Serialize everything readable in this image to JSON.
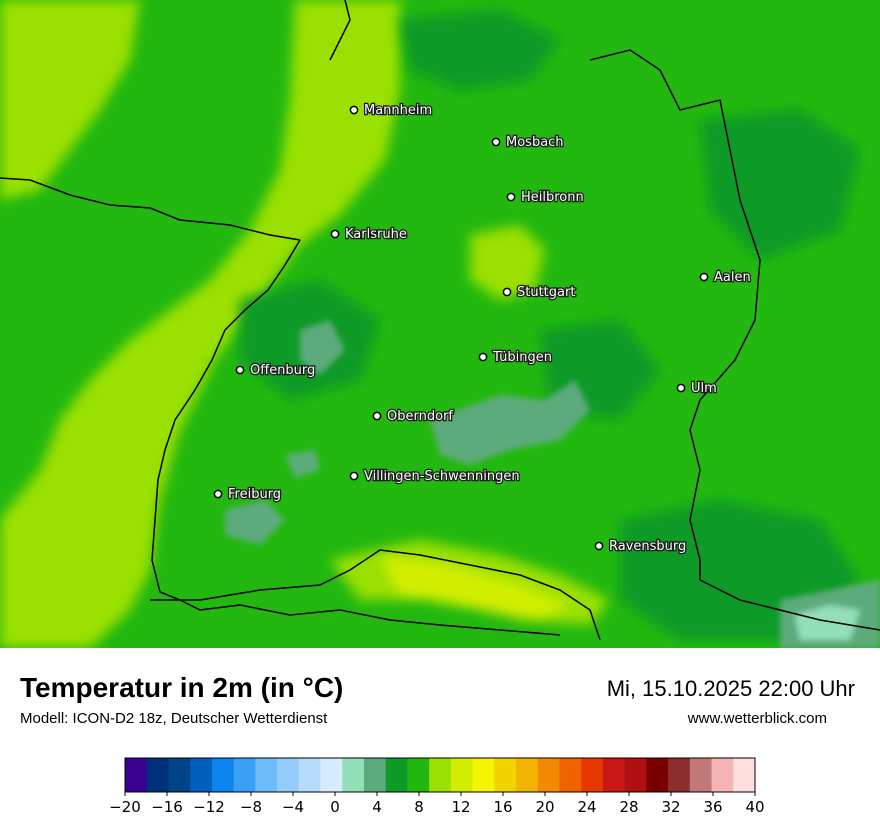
{
  "map": {
    "background_color": "#22b80f",
    "cities": [
      {
        "name": "Mannheim"
      },
      {
        "name": "Mosbach"
      },
      {
        "name": "Heilbronn"
      },
      {
        "name": "Karlsruhe"
      },
      {
        "name": "Aalen"
      },
      {
        "name": "Stuttgart"
      },
      {
        "name": "Tübingen"
      },
      {
        "name": "Offenburg"
      },
      {
        "name": "Ulm"
      },
      {
        "name": "Oberndorf"
      },
      {
        "name": "Villingen-Schwenningen"
      },
      {
        "name": "Freiburg"
      },
      {
        "name": "Ravensburg"
      }
    ]
  },
  "header": {
    "title": "Temperatur in 2m (in °C)",
    "model": "Modell: ICON-D2 18z, Deutscher Wetterdienst",
    "datetime": "Mi, 15.10.2025 22:00 Uhr",
    "website": "www.wetterblick.com"
  },
  "legend": {
    "unit": "°C",
    "min": -20,
    "max": 40,
    "tick_labels": [
      "−20",
      "−16",
      "−12",
      "−8",
      "−4",
      "0",
      "4",
      "8",
      "12",
      "16",
      "20",
      "24",
      "28",
      "32",
      "36",
      "40"
    ],
    "colors": [
      "#3a0090",
      "#00307a",
      "#004488",
      "#0060bb",
      "#0b84ef",
      "#3aa0f5",
      "#6fbaf8",
      "#93ccfa",
      "#b5dcfb",
      "#d6ebfc",
      "#93dfba",
      "#5daa7c",
      "#0e9a26",
      "#22b80f",
      "#9ae000",
      "#d2ee00",
      "#f4f600",
      "#f2d200",
      "#f2b400",
      "#f28a00",
      "#f06400",
      "#e63800",
      "#c81818",
      "#b01010",
      "#7a0000",
      "#8c2e2e",
      "#c27878",
      "#f5b4b4",
      "#fedede"
    ]
  }
}
